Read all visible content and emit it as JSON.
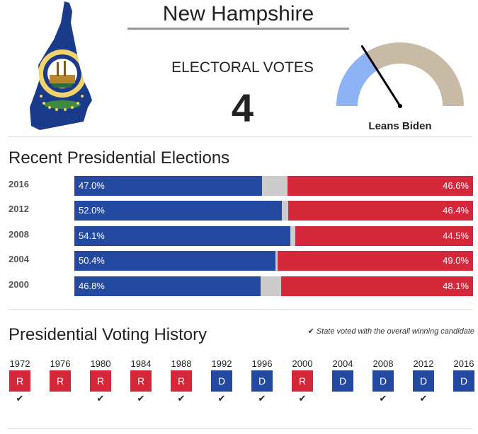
{
  "header": {
    "state_name": "New Hampshire",
    "electoral_label": "ELECTORAL VOTES",
    "electoral_votes": "4"
  },
  "gauge": {
    "label": "Leans Biden",
    "colors": {
      "biden": "#8db2f6",
      "neutral": "#c8bba5",
      "needle": "#000000"
    },
    "lean_fraction": 0.32
  },
  "recent": {
    "title": "Recent Presidential Elections",
    "colors": {
      "dem": "#234aa0",
      "rep": "#d4273a",
      "other": "#cccccc"
    },
    "elections": [
      {
        "year": "2016",
        "dem": 47.0,
        "rep": 46.6,
        "dem_label": "47.0%",
        "rep_label": "46.6%"
      },
      {
        "year": "2012",
        "dem": 52.0,
        "rep": 46.4,
        "dem_label": "52.0%",
        "rep_label": "46.4%"
      },
      {
        "year": "2008",
        "dem": 54.1,
        "rep": 44.5,
        "dem_label": "54.1%",
        "rep_label": "44.5%"
      },
      {
        "year": "2004",
        "dem": 50.4,
        "rep": 49.0,
        "dem_label": "50.4%",
        "rep_label": "49.0%"
      },
      {
        "year": "2000",
        "dem": 46.8,
        "rep": 48.1,
        "dem_label": "46.8%",
        "rep_label": "48.1%"
      }
    ]
  },
  "history": {
    "title": "Presidential Voting History",
    "legend": "State voted with the overall winning candidate",
    "check_glyph": "✔",
    "years": [
      {
        "year": "1972",
        "party": "R",
        "winner": true
      },
      {
        "year": "1976",
        "party": "R",
        "winner": false
      },
      {
        "year": "1980",
        "party": "R",
        "winner": true
      },
      {
        "year": "1984",
        "party": "R",
        "winner": true
      },
      {
        "year": "1988",
        "party": "R",
        "winner": true
      },
      {
        "year": "1992",
        "party": "D",
        "winner": true
      },
      {
        "year": "1996",
        "party": "D",
        "winner": true
      },
      {
        "year": "2000",
        "party": "R",
        "winner": true
      },
      {
        "year": "2004",
        "party": "D",
        "winner": false
      },
      {
        "year": "2008",
        "party": "D",
        "winner": true
      },
      {
        "year": "2012",
        "party": "D",
        "winner": true
      },
      {
        "year": "2016",
        "party": "D",
        "winner": false
      }
    ]
  }
}
